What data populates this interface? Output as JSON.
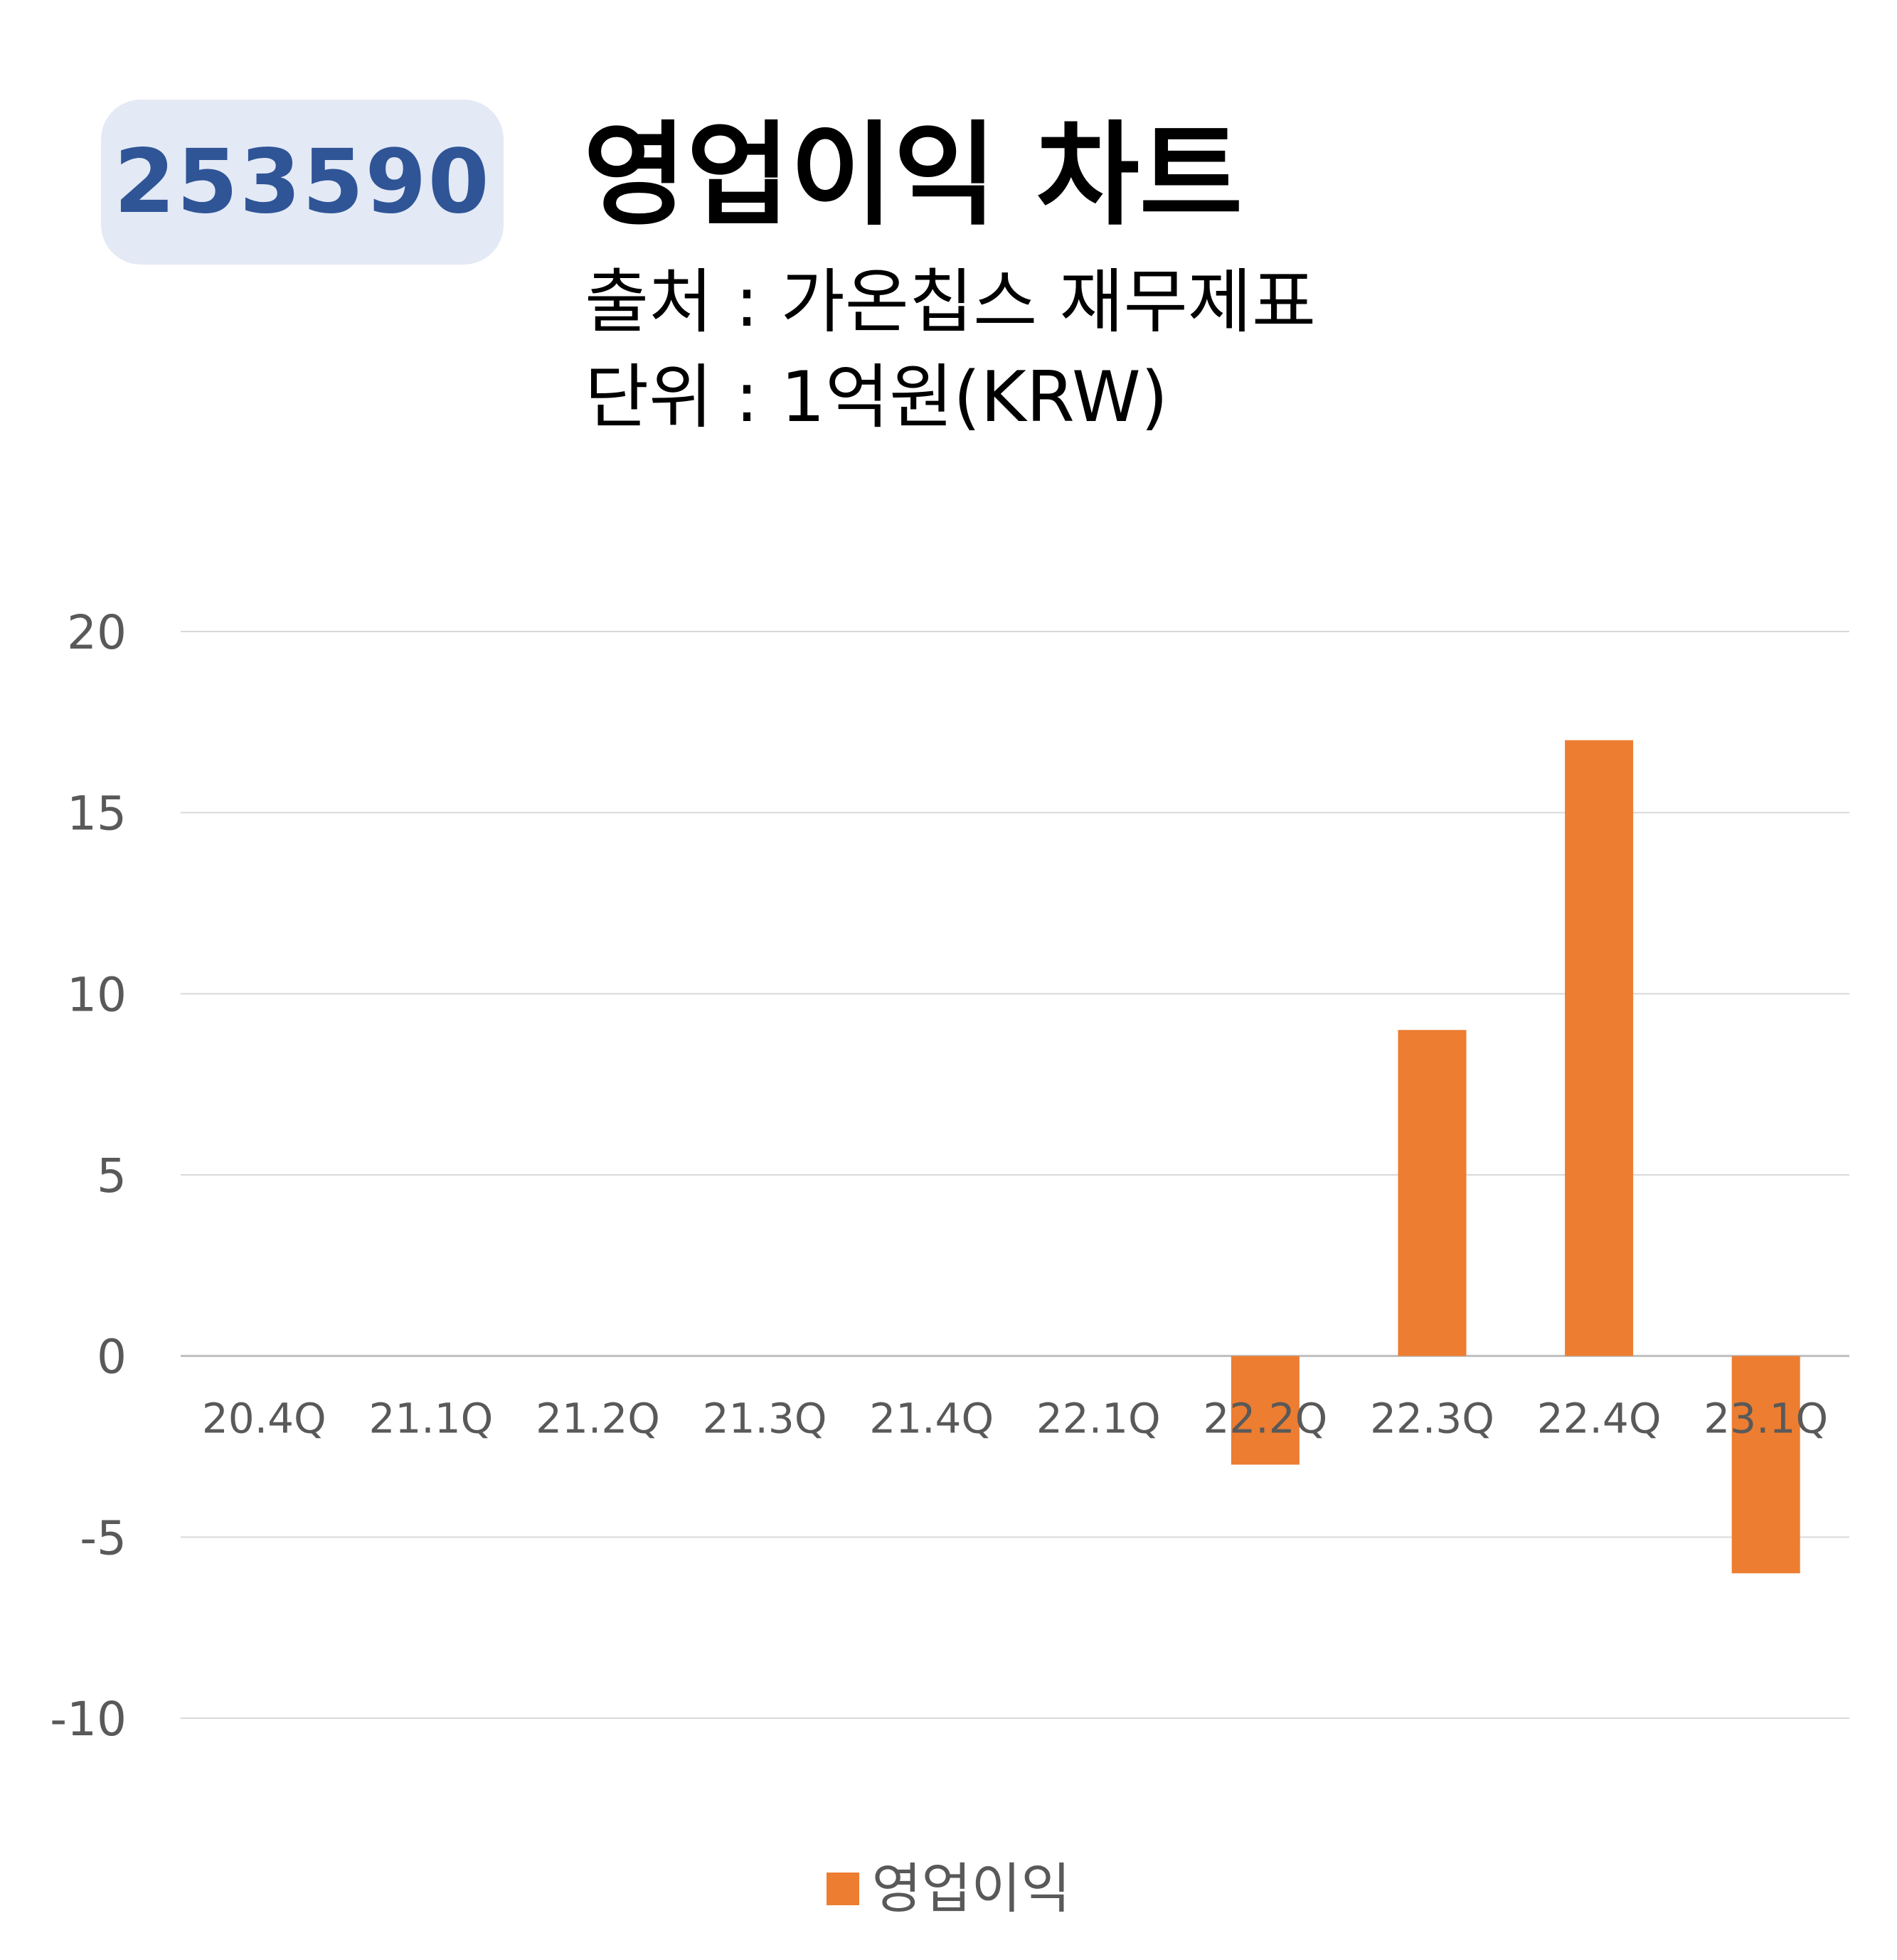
{
  "header": {
    "code": "253590",
    "title": "영업이익 차트",
    "source": "출처 : 가온칩스 재무제표",
    "unit": "단위 : 1억원(KRW)"
  },
  "colors": {
    "bar": "#ed7d31",
    "badge_bg": "#e3e9f5",
    "badge_text": "#2f5597",
    "gridline": "#d9d9d9",
    "axis_text": "#595959"
  },
  "chart_data": {
    "type": "bar",
    "title": "영업이익 차트",
    "categories": [
      "20.4Q",
      "21.1Q",
      "21.2Q",
      "21.3Q",
      "21.4Q",
      "22.1Q",
      "22.2Q",
      "22.3Q",
      "22.4Q",
      "23.1Q"
    ],
    "series": [
      {
        "name": "영업이익",
        "values": [
          0,
          0,
          0,
          0,
          0,
          0,
          -3,
          9,
          17,
          -6
        ]
      }
    ],
    "yticks": [
      20,
      15,
      10,
      5,
      0,
      -5,
      -10
    ],
    "ylim": [
      -10,
      20
    ],
    "xlabel": "",
    "ylabel": "",
    "grid": true,
    "legend": "bottom"
  }
}
